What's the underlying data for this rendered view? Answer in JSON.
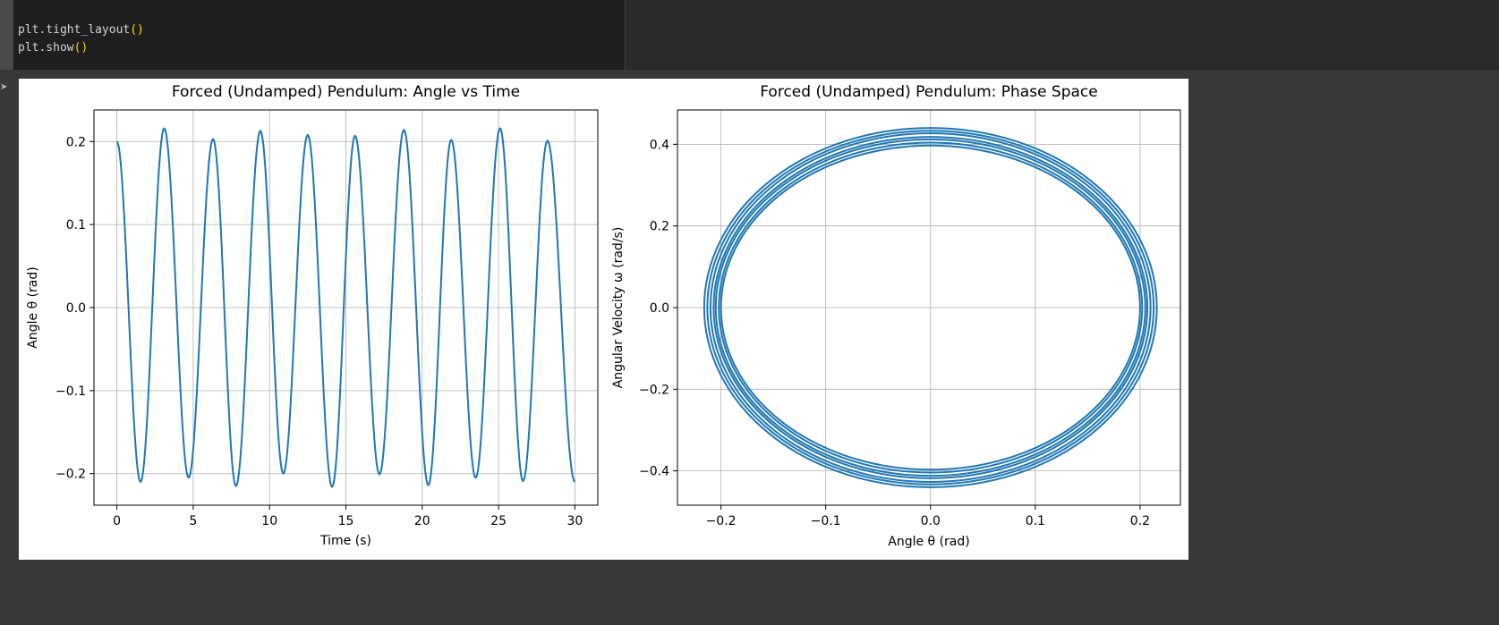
{
  "code": {
    "lines": [
      [
        "plt.tight_layout",
        "()"
      ],
      [
        "plt.show",
        "()"
      ]
    ]
  },
  "output": {
    "marker": "➤"
  },
  "chart_data": [
    {
      "type": "line",
      "title": "Forced (Undamped) Pendulum: Angle vs Time",
      "xlabel": "Time (s)",
      "ylabel": "Angle θ (rad)",
      "xlim": [
        -1.5,
        31.5
      ],
      "ylim": [
        -0.238,
        0.238
      ],
      "xticks": [
        0,
        5,
        10,
        15,
        20,
        25,
        30
      ],
      "xtick_labels": [
        "0",
        "5",
        "10",
        "15",
        "20",
        "25",
        "30"
      ],
      "yticks": [
        -0.2,
        -0.1,
        0.0,
        0.1,
        0.2
      ],
      "ytick_labels": [
        "−0.2",
        "−0.1",
        "0.0",
        "0.1",
        "0.2"
      ],
      "grid": true,
      "color": "#1f77b4",
      "series": [
        {
          "extrema": [
            [
              0.0,
              0.2
            ],
            [
              1.55,
              -0.21
            ],
            [
              3.1,
              0.216
            ],
            [
              4.7,
              -0.205
            ],
            [
              6.3,
              0.203
            ],
            [
              7.8,
              -0.215
            ],
            [
              9.4,
              0.213
            ],
            [
              10.9,
              -0.2
            ],
            [
              12.5,
              0.208
            ],
            [
              14.1,
              -0.216
            ],
            [
              15.6,
              0.207
            ],
            [
              17.2,
              -0.201
            ],
            [
              18.8,
              0.214
            ],
            [
              20.4,
              -0.214
            ],
            [
              21.9,
              0.202
            ],
            [
              23.5,
              -0.205
            ],
            [
              25.1,
              0.216
            ],
            [
              26.6,
              -0.209
            ],
            [
              28.2,
              0.201
            ],
            [
              30.0,
              -0.21
            ]
          ]
        }
      ]
    },
    {
      "type": "line",
      "title": "Forced (Undamped) Pendulum: Phase Space",
      "xlabel": "Angle θ (rad)",
      "ylabel": "Angular Velocity ω (rad/s)",
      "xlim": [
        -0.2415,
        0.2385
      ],
      "ylim": [
        -0.484,
        0.484
      ],
      "xticks": [
        -0.2,
        -0.1,
        0.0,
        0.1,
        0.2
      ],
      "xtick_labels": [
        "−0.2",
        "−0.1",
        "0.0",
        "0.1",
        "0.2"
      ],
      "yticks": [
        -0.4,
        -0.2,
        0.0,
        0.2,
        0.4
      ],
      "ytick_labels": [
        "−0.4",
        "−0.2",
        "0.0",
        "0.2",
        "0.4"
      ],
      "grid": true,
      "color": "#1f77b4",
      "series": [
        {
          "loops": [
            {
              "theta_amp": 0.216,
              "omega_amp": 0.44
            },
            {
              "theta_amp": 0.213,
              "omega_amp": 0.433
            },
            {
              "theta_amp": 0.21,
              "omega_amp": 0.427
            },
            {
              "theta_amp": 0.207,
              "omega_amp": 0.418
            },
            {
              "theta_amp": 0.205,
              "omega_amp": 0.412
            },
            {
              "theta_amp": 0.202,
              "omega_amp": 0.404
            },
            {
              "theta_amp": 0.2,
              "omega_amp": 0.397
            }
          ]
        }
      ]
    }
  ]
}
